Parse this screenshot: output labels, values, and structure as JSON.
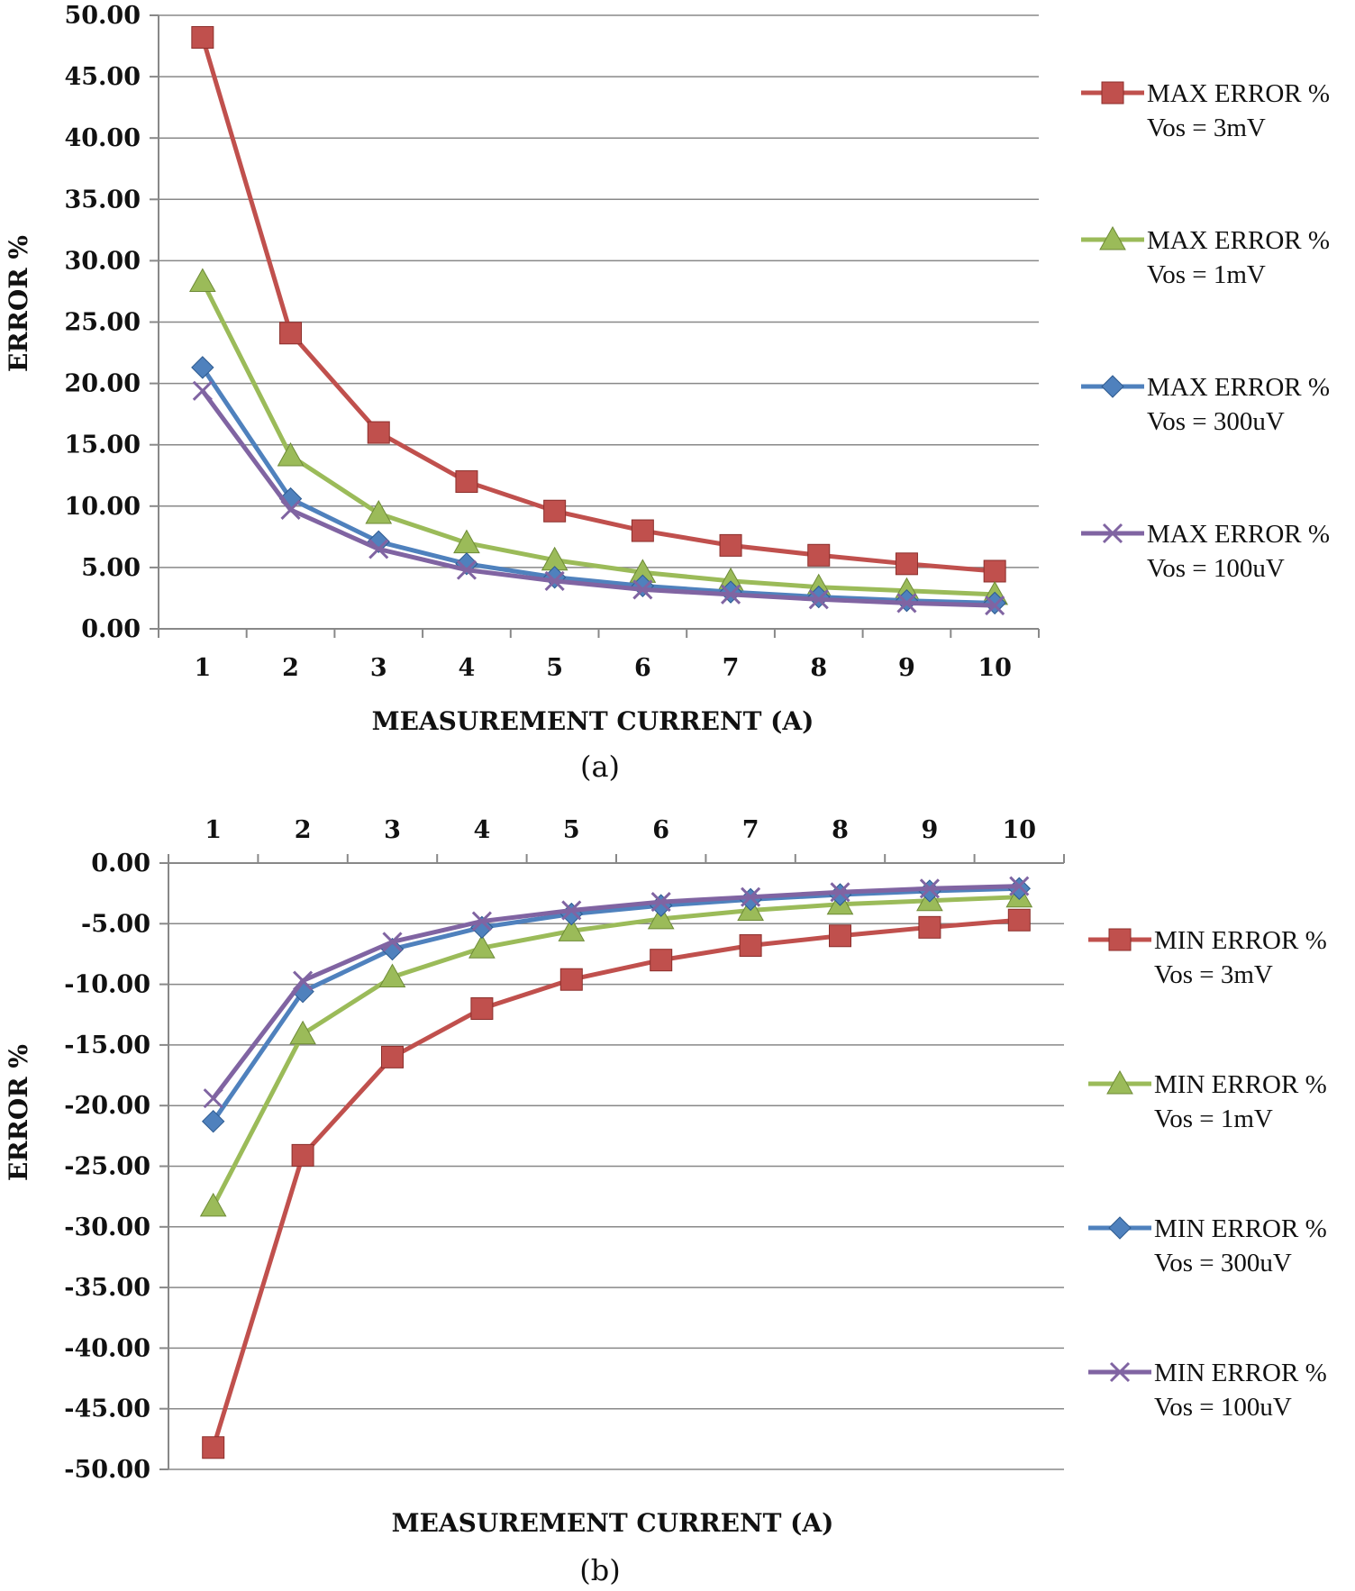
{
  "chart_data": [
    {
      "type": "line",
      "id": "a",
      "caption": "(a)",
      "xlabel": "MEASUREMENT CURRENT (A)",
      "ylabel": "ERROR %",
      "categories": [
        "1",
        "2",
        "3",
        "4",
        "5",
        "6",
        "7",
        "8",
        "9",
        "10"
      ],
      "ylim": [
        0,
        50
      ],
      "yticks": [
        "0.00",
        "5.00",
        "10.00",
        "15.00",
        "20.00",
        "25.00",
        "30.00",
        "35.00",
        "40.00",
        "45.00",
        "50.00"
      ],
      "x_axis_position": "bottom",
      "grid": true,
      "legend_position": "right",
      "series": [
        {
          "name": "MAX ERROR %",
          "sub": "Vos = 3mV",
          "color": "#c0504d",
          "marker": "square",
          "values": [
            48.2,
            24.1,
            16.0,
            12.0,
            9.6,
            8.0,
            6.8,
            6.0,
            5.3,
            4.7
          ]
        },
        {
          "name": "MAX ERROR %",
          "sub": "Vos = 1mV",
          "color": "#9bbb59",
          "marker": "triangle",
          "values": [
            28.3,
            14.1,
            9.4,
            7.0,
            5.6,
            4.6,
            3.9,
            3.4,
            3.1,
            2.8
          ]
        },
        {
          "name": "MAX ERROR %",
          "sub": "Vos = 300uV",
          "color": "#4f81bd",
          "marker": "diamond",
          "values": [
            21.3,
            10.6,
            7.1,
            5.3,
            4.2,
            3.5,
            3.0,
            2.6,
            2.3,
            2.1
          ]
        },
        {
          "name": "MAX ERROR %",
          "sub": "Vos = 100uV",
          "color": "#8064a2",
          "marker": "x",
          "values": [
            19.4,
            9.7,
            6.5,
            4.8,
            3.9,
            3.2,
            2.8,
            2.4,
            2.1,
            1.9
          ]
        }
      ]
    },
    {
      "type": "line",
      "id": "b",
      "caption": "(b)",
      "xlabel": "MEASUREMENT CURRENT (A)",
      "ylabel": "ERROR %",
      "categories": [
        "1",
        "2",
        "3",
        "4",
        "5",
        "6",
        "7",
        "8",
        "9",
        "10"
      ],
      "ylim": [
        -50,
        0
      ],
      "yticks": [
        "0.00",
        "-5.00",
        "-10.00",
        "-15.00",
        "-20.00",
        "-25.00",
        "-30.00",
        "-35.00",
        "-40.00",
        "-45.00",
        "-50.00"
      ],
      "x_axis_position": "top",
      "grid": true,
      "legend_position": "right",
      "series": [
        {
          "name": "MIN ERROR %",
          "sub": "Vos = 3mV",
          "color": "#c0504d",
          "marker": "square",
          "values": [
            -48.2,
            -24.1,
            -16.0,
            -12.0,
            -9.6,
            -8.0,
            -6.8,
            -6.0,
            -5.3,
            -4.7
          ]
        },
        {
          "name": "MIN ERROR %",
          "sub": "Vos = 1mV",
          "color": "#9bbb59",
          "marker": "triangle",
          "values": [
            -28.3,
            -14.1,
            -9.4,
            -7.0,
            -5.6,
            -4.6,
            -3.9,
            -3.4,
            -3.1,
            -2.8
          ]
        },
        {
          "name": "MIN ERROR %",
          "sub": "Vos = 300uV",
          "color": "#4f81bd",
          "marker": "diamond",
          "values": [
            -21.3,
            -10.6,
            -7.1,
            -5.3,
            -4.2,
            -3.5,
            -3.0,
            -2.6,
            -2.3,
            -2.1
          ]
        },
        {
          "name": "MIN ERROR %",
          "sub": "Vos = 100uV",
          "color": "#8064a2",
          "marker": "x",
          "values": [
            -19.4,
            -9.7,
            -6.5,
            -4.8,
            -3.9,
            -3.2,
            -2.8,
            -2.4,
            -2.1,
            -1.9
          ]
        }
      ]
    }
  ]
}
